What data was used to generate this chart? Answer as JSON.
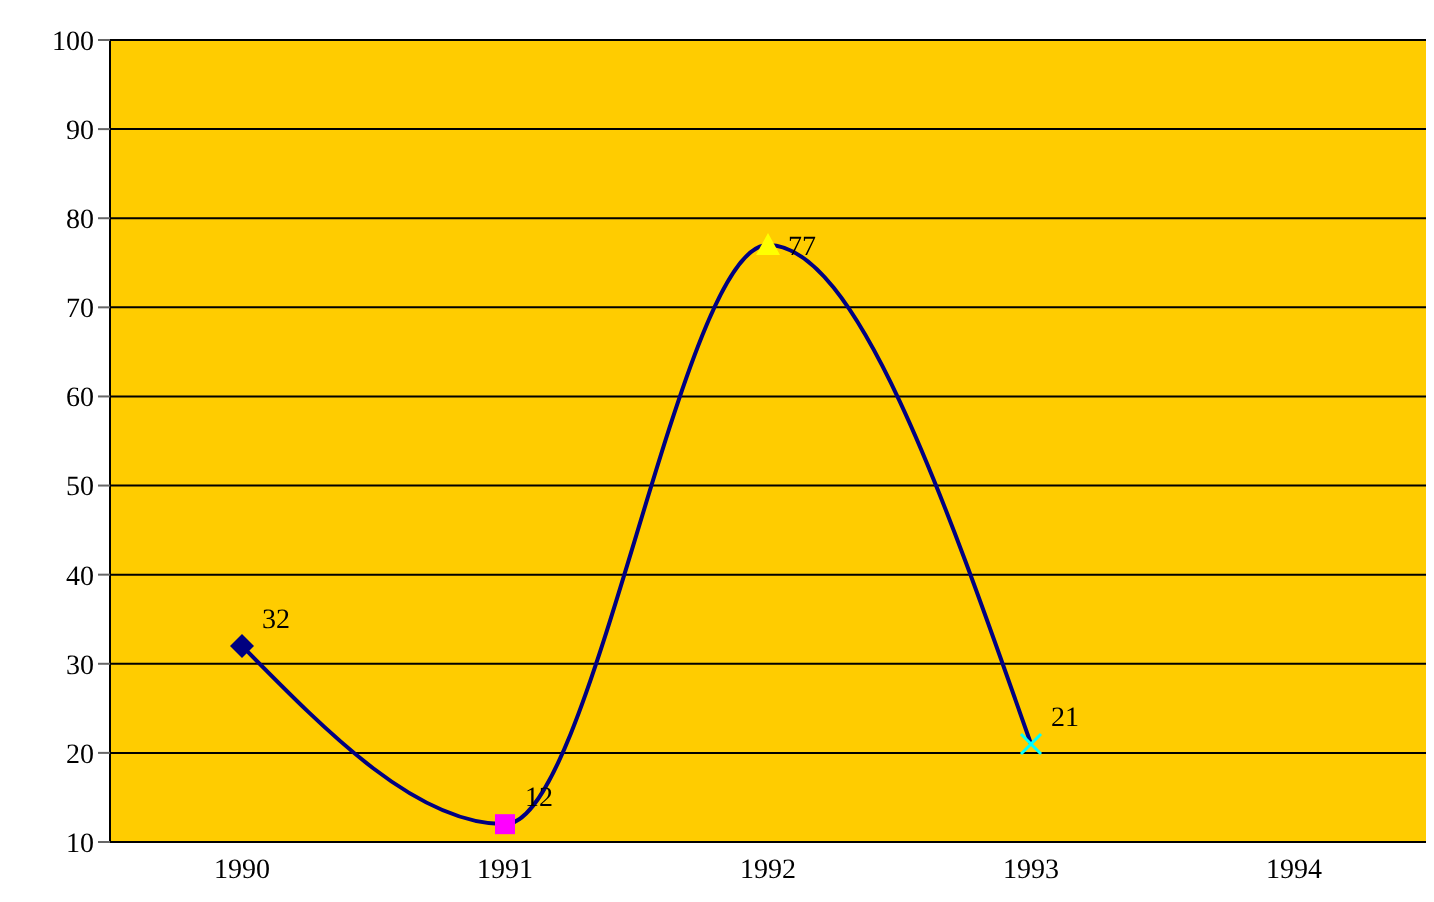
{
  "chart_data": {
    "type": "line",
    "categories": [
      "1990",
      "1991",
      "1992",
      "1993",
      "1994"
    ],
    "series": [
      {
        "color": "#000080",
        "values": [
          32,
          12,
          77,
          21,
          null
        ],
        "colors": [
          "#000080",
          "#ff00ff",
          "#ffff00",
          "#00ffff",
          null
        ],
        "marker": [
          "diamond",
          "square",
          "triangle",
          "cross",
          null
        ]
      }
    ],
    "ylim": [
      10,
      100
    ],
    "yticks": [
      10,
      20,
      30,
      40,
      50,
      60,
      70,
      80,
      90,
      100
    ],
    "grid": "y",
    "data_labels": true
  }
}
